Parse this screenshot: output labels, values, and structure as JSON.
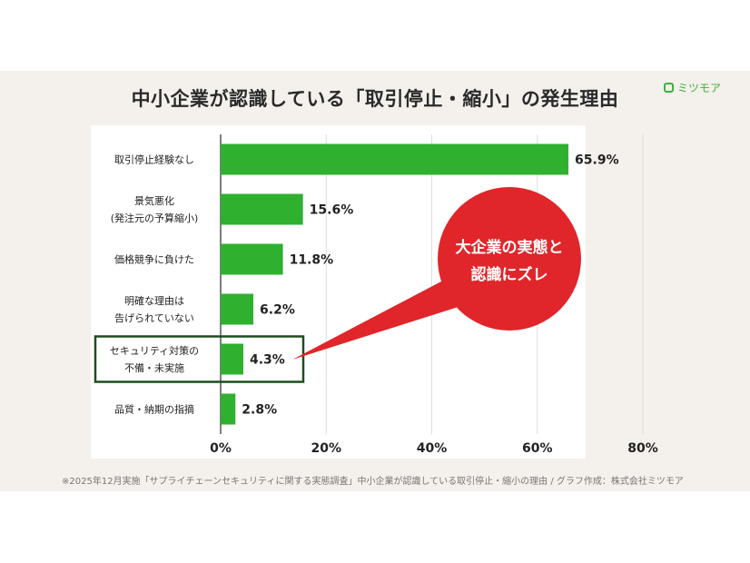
{
  "title": "中小企業が認識している「取引停止・縮小」の発生理由",
  "logo": {
    "text": "ミツモア",
    "icon": "mitsumoa-logo-icon"
  },
  "callout": "大企業の実態と\n認識にズレ",
  "footnote": "※2025年12月実施「サプライチェーンセキュリティに関する実態調査」中小企業が認識している取引停止・縮小の理由 / グラフ作成：株式会社ミツモア",
  "colors": {
    "bar": "#2fb02f",
    "callout": "#e0262a",
    "highlight_border": "#1f4d1f"
  },
  "chart_data": {
    "type": "bar",
    "orientation": "horizontal",
    "categories": [
      [
        "取引停止経験なし"
      ],
      [
        "景気悪化",
        "(発注元の予算縮小)"
      ],
      [
        "価格競争に負けた"
      ],
      [
        "明確な理由は",
        "告げられていない"
      ],
      [
        "セキュリティ対策の",
        "不備・未実施"
      ],
      [
        "品質・納期の指摘"
      ]
    ],
    "values": [
      65.9,
      15.6,
      11.8,
      6.2,
      4.3,
      2.8
    ],
    "data_labels": [
      "65.9%",
      "15.6%",
      "11.8%",
      "6.2%",
      "4.3%",
      "2.8%"
    ],
    "xlim": [
      0,
      80
    ],
    "xticks": [
      "0%",
      "20%",
      "40%",
      "60%",
      "80%"
    ],
    "grid": true,
    "highlighted_category_index": 4
  }
}
